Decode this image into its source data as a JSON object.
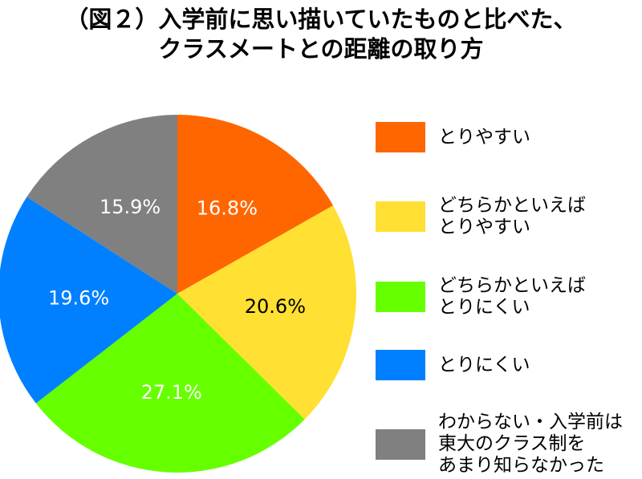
{
  "title_lines": [
    "（図２）入学前に思い描いていたものと比べた、",
    "クラスメートとの距離の取り方"
  ],
  "chart_data": {
    "type": "pie",
    "title": "（図２）入学前に思い描いていたものと比べた、クラスメートとの距離の取り方",
    "start_angle": "12 o'clock, clockwise",
    "slices": [
      {
        "label": "とりやすい",
        "value": 16.8,
        "value_label": "16.8%",
        "color": "#ff6600",
        "label_color": "#ffffff"
      },
      {
        "label": "どちらかといえば\nとりやすい",
        "value": 20.6,
        "value_label": "20.6%",
        "color": "#ffe033",
        "label_color": "#000000"
      },
      {
        "label": "どちらかといえば\nとりにくい",
        "value": 27.1,
        "value_label": "27.1%",
        "color": "#66ff00",
        "label_color": "#ffffff"
      },
      {
        "label": "とりにくい",
        "value": 19.6,
        "value_label": "19.6%",
        "color": "#0080ff",
        "label_color": "#ffffff"
      },
      {
        "label": "わからない・入学前は\n東大のクラス制を\nあまり知らなかった",
        "value": 15.9,
        "value_label": "15.9%",
        "color": "#808080",
        "label_color": "#ffffff"
      }
    ],
    "legend_position": "right"
  }
}
